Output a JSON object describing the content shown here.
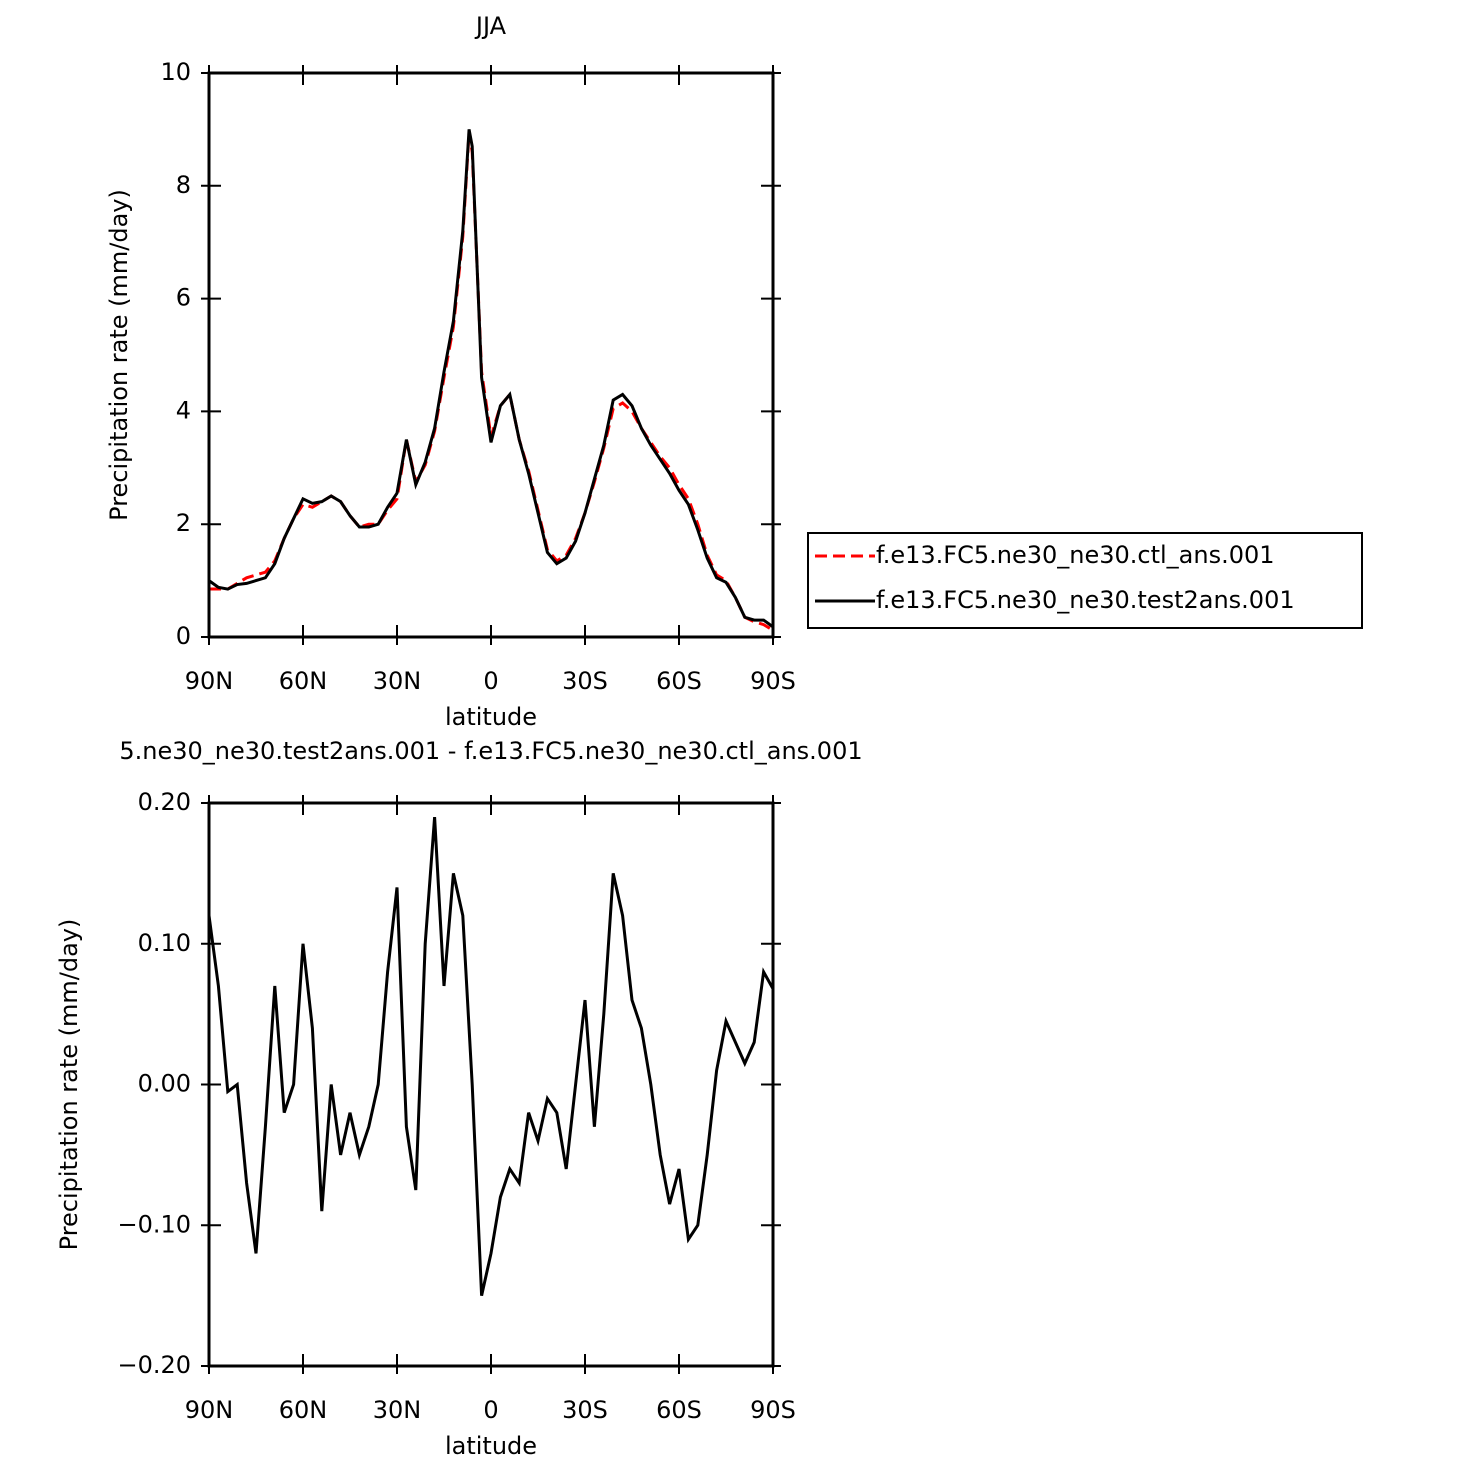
{
  "chart_data": [
    {
      "type": "line",
      "title": "JJA",
      "xlabel": "latitude",
      "ylabel": "Precipitation rate (mm/day)",
      "x": [
        90,
        87,
        84,
        81,
        78,
        75,
        72,
        69,
        66,
        63,
        60,
        57,
        54,
        51,
        48,
        45,
        42,
        39,
        36,
        33,
        30,
        27,
        24,
        21,
        18,
        15,
        12,
        9,
        7,
        6,
        3,
        0,
        -3,
        -6,
        -9,
        -12,
        -15,
        -18,
        -21,
        -24,
        -27,
        -30,
        -33,
        -36,
        -39,
        -42,
        -45,
        -48,
        -51,
        -54,
        -57,
        -60,
        -63,
        -66,
        -69,
        -72,
        -75,
        -78,
        -81,
        -84,
        -87,
        -90
      ],
      "series": [
        {
          "name": "f.e13.FC5.ne30_ne30.ctl_ans.001",
          "color": "#ff0000",
          "linestyle": "dashed",
          "values": [
            0.85,
            0.85,
            0.85,
            0.95,
            1.05,
            1.1,
            1.15,
            1.35,
            1.75,
            2.1,
            2.35,
            2.3,
            2.4,
            2.5,
            2.4,
            2.15,
            1.95,
            2.0,
            2.0,
            2.25,
            2.45,
            3.5,
            2.75,
            3.05,
            3.65,
            4.6,
            5.5,
            7.1,
            8.95,
            8.6,
            4.7,
            3.55,
            4.1,
            4.3,
            3.5,
            2.95,
            2.25,
            1.55,
            1.35,
            1.45,
            1.75,
            2.2,
            2.75,
            3.35,
            4.05,
            4.15,
            4.0,
            3.7,
            3.45,
            3.2,
            3.0,
            2.7,
            2.45,
            2.0,
            1.45,
            1.1,
            1.0,
            0.7,
            0.35,
            0.27,
            0.22,
            0.12
          ]
        },
        {
          "name": "f.e13.FC5.ne30_ne30.test2ans.001",
          "color": "#000000",
          "linestyle": "solid",
          "values": [
            1.0,
            0.88,
            0.85,
            0.93,
            0.95,
            1.0,
            1.05,
            1.3,
            1.75,
            2.1,
            2.45,
            2.37,
            2.4,
            2.5,
            2.4,
            2.15,
            1.95,
            1.95,
            2.0,
            2.3,
            2.55,
            3.5,
            2.7,
            3.1,
            3.7,
            4.7,
            5.6,
            7.2,
            9.0,
            8.7,
            4.6,
            3.45,
            4.1,
            4.3,
            3.5,
            2.9,
            2.2,
            1.5,
            1.3,
            1.4,
            1.7,
            2.2,
            2.8,
            3.4,
            4.2,
            4.3,
            4.1,
            3.7,
            3.4,
            3.15,
            2.9,
            2.6,
            2.35,
            1.9,
            1.4,
            1.05,
            0.97,
            0.7,
            0.35,
            0.3,
            0.3,
            0.18
          ]
        }
      ],
      "xlim": [
        90,
        -90
      ],
      "xticks": [
        {
          "value": 90,
          "label": "90N"
        },
        {
          "value": 60,
          "label": "60N"
        },
        {
          "value": 30,
          "label": "30N"
        },
        0,
        {
          "value": -30,
          "label": "30S"
        },
        {
          "value": -60,
          "label": "60S"
        },
        {
          "value": -90,
          "label": "90S"
        }
      ],
      "ylim": [
        0,
        10
      ],
      "yticks": [
        0,
        2,
        4,
        6,
        8,
        10
      ],
      "legend": "outside-right"
    },
    {
      "type": "line",
      "title": "5.ne30_ne30.test2ans.001 - f.e13.FC5.ne30_ne30.ctl_ans.001",
      "xlabel": "latitude",
      "ylabel": "Precipitation rate (mm/day)",
      "x": [
        90,
        87,
        84,
        81,
        78,
        75,
        72,
        69,
        66,
        63,
        60,
        57,
        54,
        51,
        48,
        45,
        42,
        39,
        36,
        33,
        30,
        27,
        24,
        21,
        18,
        15,
        12,
        9,
        6,
        3,
        0,
        -3,
        -6,
        -9,
        -12,
        -15,
        -18,
        -21,
        -24,
        -27,
        -30,
        -33,
        -36,
        -39,
        -42,
        -45,
        -48,
        -51,
        -54,
        -57,
        -60,
        -63,
        -66,
        -69,
        -72,
        -75,
        -78,
        -81,
        -84,
        -87,
        -90
      ],
      "series": [
        {
          "color": "#000000",
          "linestyle": "solid",
          "values": [
            0.12,
            0.07,
            -0.005,
            0.0,
            -0.07,
            -0.12,
            -0.03,
            0.07,
            -0.02,
            0.0,
            0.1,
            0.04,
            -0.09,
            0.0,
            -0.05,
            -0.02,
            -0.05,
            -0.03,
            0.0,
            0.08,
            0.14,
            -0.03,
            -0.075,
            0.1,
            0.19,
            0.07,
            0.15,
            0.12,
            0.0,
            -0.15,
            -0.12,
            -0.08,
            -0.06,
            -0.07,
            -0.02,
            -0.04,
            -0.01,
            -0.02,
            -0.06,
            0.0,
            0.06,
            -0.03,
            0.05,
            0.15,
            0.12,
            0.06,
            0.04,
            0.0,
            -0.05,
            -0.085,
            -0.06,
            -0.11,
            -0.1,
            -0.05,
            0.01,
            0.045,
            0.03,
            0.015,
            0.03,
            0.08,
            0.068
          ]
        }
      ],
      "xlim": [
        90,
        -90
      ],
      "xticks": [
        {
          "value": 90,
          "label": "90N"
        },
        {
          "value": 60,
          "label": "60N"
        },
        {
          "value": 30,
          "label": "30N"
        },
        0,
        {
          "value": -30,
          "label": "30S"
        },
        {
          "value": -60,
          "label": "60S"
        },
        {
          "value": -90,
          "label": "90S"
        }
      ],
      "ylim": [
        -0.2,
        0.2
      ],
      "yticks": [
        {
          "value": -0.2,
          "label": "−0.20"
        },
        {
          "value": -0.1,
          "label": "−0.10"
        },
        {
          "value": 0,
          "label": "0.00"
        },
        {
          "value": 0.1,
          "label": "0.10"
        },
        {
          "value": 0.2,
          "label": "0.20"
        }
      ]
    }
  ]
}
